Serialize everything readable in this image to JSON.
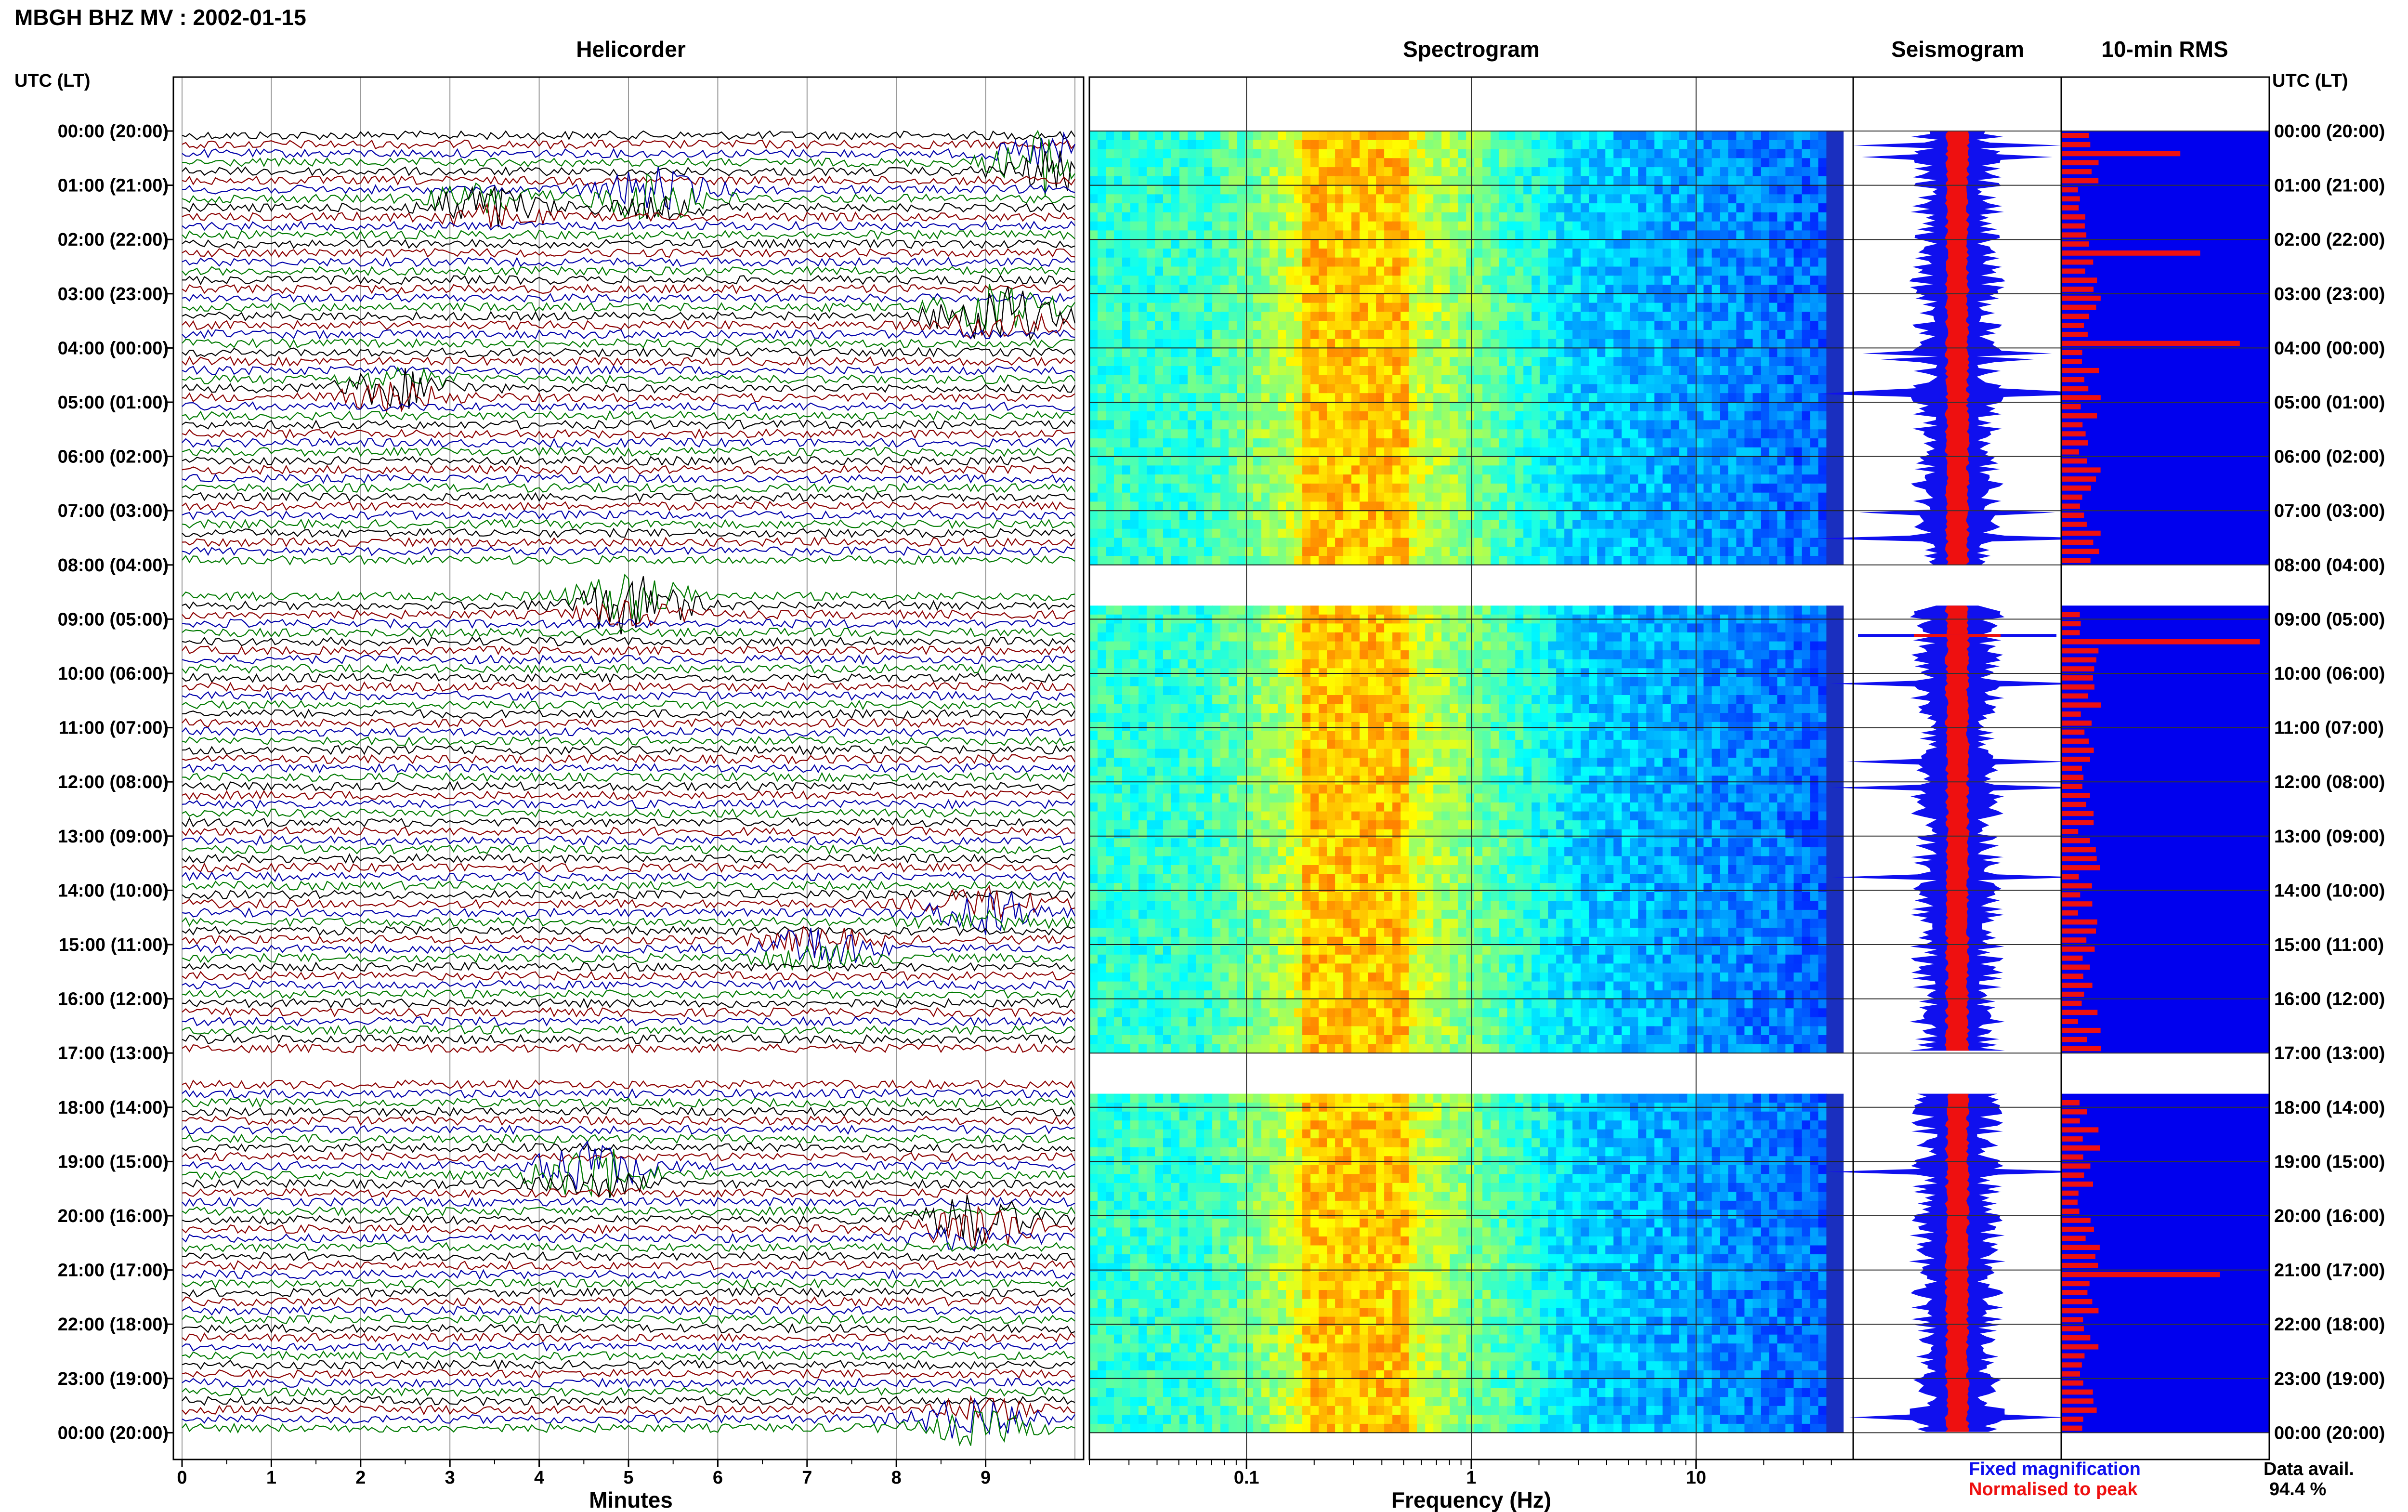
{
  "header": {
    "title": "MBGH BHZ MV : 2002-01-15"
  },
  "panels": {
    "helicorder": "Helicorder",
    "spectrogram": "Spectrogram",
    "seismogram": "Seismogram",
    "rms": "10-min RMS"
  },
  "time_axis": {
    "header_left": "UTC (LT)",
    "header_right": "UTC (LT)",
    "labels": [
      "00:00 (20:00)",
      "01:00 (21:00)",
      "02:00 (22:00)",
      "03:00 (23:00)",
      "04:00 (00:00)",
      "05:00 (01:00)",
      "06:00 (02:00)",
      "07:00 (03:00)",
      "08:00 (04:00)",
      "09:00 (05:00)",
      "10:00 (06:00)",
      "11:00 (07:00)",
      "12:00 (08:00)",
      "13:00 (09:00)",
      "14:00 (10:00)",
      "15:00 (11:00)",
      "16:00 (12:00)",
      "17:00 (13:00)",
      "18:00 (14:00)",
      "19:00 (15:00)",
      "20:00 (16:00)",
      "21:00 (17:00)",
      "22:00 (18:00)",
      "23:00 (19:00)",
      "00:00 (20:00)"
    ]
  },
  "legend": {
    "fixed": "Fixed magnification",
    "normalised": "Normalised to peak",
    "fixed_color": "#1010ee",
    "normalised_color": "#ee1010"
  },
  "availability": {
    "label": "Data avail.",
    "value": "94.4 %"
  },
  "chart_data": [
    {
      "type": "line",
      "title": "Helicorder",
      "xlabel": "Minutes",
      "x_ticks": [
        "0",
        "1",
        "2",
        "3",
        "4",
        "5",
        "6",
        "7",
        "8",
        "9"
      ],
      "xlim": [
        0,
        10
      ],
      "trace_colors": [
        "#000000",
        "#8b0000",
        "#0000aa",
        "#007a00"
      ],
      "gaps": [
        "08:00-08:30",
        "17:00-17:30"
      ],
      "events": [
        {
          "hour": 0.5,
          "minute": 9.8,
          "amp": 1.0
        },
        {
          "hour": 1.1,
          "minute": 5.3,
          "amp": 0.8
        },
        {
          "hour": 1.3,
          "minute": 3.4,
          "amp": 0.7
        },
        {
          "hour": 3.3,
          "minute": 9.1,
          "amp": 1.0
        },
        {
          "hour": 4.7,
          "minute": 2.4,
          "amp": 0.6
        },
        {
          "hour": 8.6,
          "minute": 5.0,
          "amp": 1.0
        },
        {
          "hour": 14.3,
          "minute": 9.0,
          "amp": 0.7
        },
        {
          "hour": 15.0,
          "minute": 7.1,
          "amp": 0.6
        },
        {
          "hour": 19.1,
          "minute": 4.6,
          "amp": 1.0
        },
        {
          "hour": 20.1,
          "minute": 8.9,
          "amp": 1.0
        },
        {
          "hour": 23.7,
          "minute": 8.9,
          "amp": 0.7
        }
      ]
    },
    {
      "type": "heatmap",
      "title": "Spectrogram",
      "xlabel": "Frequency (Hz)",
      "x_scale": "log",
      "x_ticks": [
        "0.1",
        "1",
        "10"
      ],
      "xlim": [
        0.02,
        50
      ],
      "colormap": "jet",
      "dominant_band_hz": [
        0.18,
        0.5
      ]
    },
    {
      "type": "area",
      "title": "Seismogram",
      "series": [
        {
          "name": "Fixed magnification",
          "color": "#1010ee"
        },
        {
          "name": "Normalised to peak",
          "color": "#ee1010"
        }
      ]
    },
    {
      "type": "bar",
      "title": "10-min RMS",
      "bar_color": "#ee1010",
      "background_color": "#0000ee",
      "peak_bars": [
        {
          "hour": 0.4,
          "value": 0.6
        },
        {
          "hour": 2.1,
          "value": 0.7
        },
        {
          "hour": 3.8,
          "value": 0.9
        },
        {
          "hour": 9.3,
          "value": 1.0
        },
        {
          "hour": 21.0,
          "value": 0.8
        }
      ]
    }
  ]
}
